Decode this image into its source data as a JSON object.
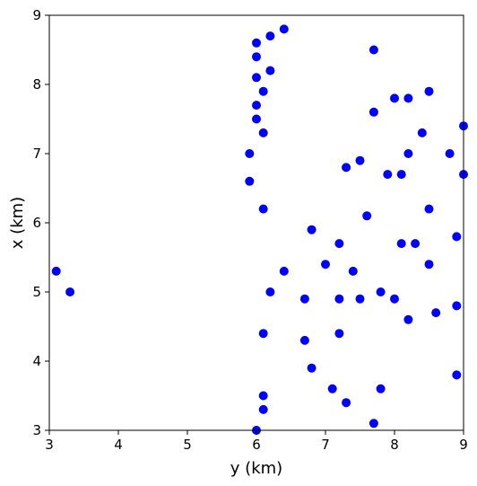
{
  "chart_data": {
    "type": "scatter",
    "xlabel": "y (km)",
    "ylabel": "x (km)",
    "xlim": [
      3,
      9
    ],
    "ylim": [
      3,
      9
    ],
    "xticks": [
      "3",
      "4",
      "5",
      "6",
      "7",
      "8",
      "9"
    ],
    "yticks": [
      "3",
      "4",
      "5",
      "6",
      "7",
      "8",
      "9"
    ],
    "grid": false,
    "marker_color": "#0000ff",
    "series": [
      {
        "points": [
          [
            3.1,
            5.3
          ],
          [
            3.3,
            5.0
          ],
          [
            6.0,
            8.6
          ],
          [
            6.2,
            8.7
          ],
          [
            6.4,
            8.8
          ],
          [
            6.0,
            8.4
          ],
          [
            6.2,
            8.2
          ],
          [
            6.0,
            8.1
          ],
          [
            6.1,
            7.9
          ],
          [
            6.0,
            7.7
          ],
          [
            6.0,
            7.5
          ],
          [
            6.1,
            7.3
          ],
          [
            5.9,
            7.0
          ],
          [
            5.9,
            6.6
          ],
          [
            6.1,
            6.2
          ],
          [
            6.4,
            5.3
          ],
          [
            6.2,
            5.0
          ],
          [
            6.1,
            4.4
          ],
          [
            6.1,
            3.5
          ],
          [
            6.1,
            3.3
          ],
          [
            6.0,
            3.0
          ],
          [
            7.7,
            8.5
          ],
          [
            8.0,
            7.8
          ],
          [
            8.2,
            7.8
          ],
          [
            8.5,
            7.9
          ],
          [
            7.7,
            7.6
          ],
          [
            8.4,
            7.3
          ],
          [
            9.0,
            7.4
          ],
          [
            8.2,
            7.0
          ],
          [
            8.8,
            7.0
          ],
          [
            7.5,
            6.9
          ],
          [
            7.3,
            6.8
          ],
          [
            7.9,
            6.7
          ],
          [
            8.1,
            6.7
          ],
          [
            9.0,
            6.7
          ],
          [
            8.5,
            6.2
          ],
          [
            7.6,
            6.1
          ],
          [
            6.8,
            5.9
          ],
          [
            8.9,
            5.8
          ],
          [
            7.2,
            5.7
          ],
          [
            8.1,
            5.7
          ],
          [
            8.3,
            5.7
          ],
          [
            7.0,
            5.4
          ],
          [
            8.5,
            5.4
          ],
          [
            7.4,
            5.3
          ],
          [
            7.8,
            5.0
          ],
          [
            6.7,
            4.9
          ],
          [
            7.2,
            4.9
          ],
          [
            7.5,
            4.9
          ],
          [
            8.0,
            4.9
          ],
          [
            8.9,
            4.8
          ],
          [
            8.6,
            4.7
          ],
          [
            8.2,
            4.6
          ],
          [
            7.2,
            4.4
          ],
          [
            6.7,
            4.3
          ],
          [
            6.8,
            3.9
          ],
          [
            8.9,
            3.8
          ],
          [
            7.1,
            3.6
          ],
          [
            7.8,
            3.6
          ],
          [
            7.3,
            3.4
          ],
          [
            7.7,
            3.1
          ]
        ]
      }
    ]
  }
}
